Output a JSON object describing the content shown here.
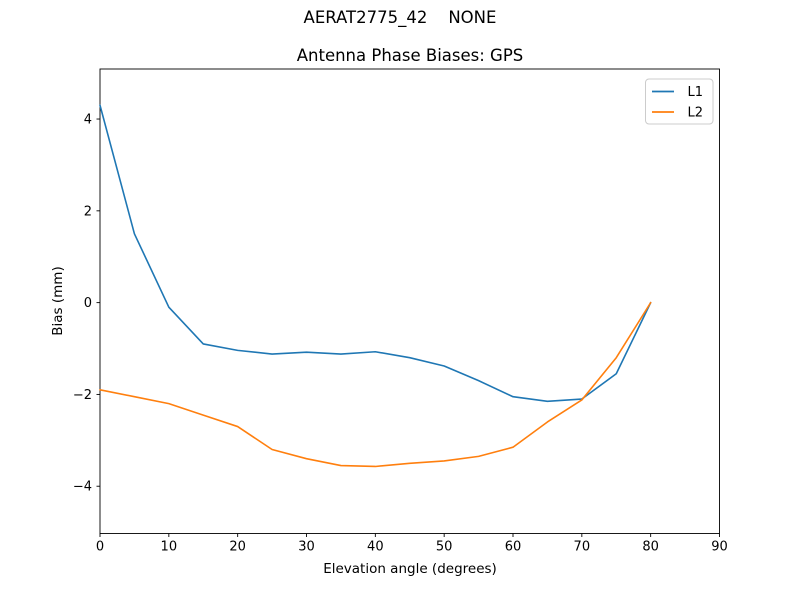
{
  "figure": {
    "suptitle": "AERAT2775_42    NONE"
  },
  "chart_data": {
    "type": "line",
    "title": "Antenna Phase Biases: GPS",
    "xlabel": "Elevation angle (degrees)",
    "ylabel": "Bias (mm)",
    "xlim": [
      0,
      90
    ],
    "ylim": [
      -5.03,
      5.09
    ],
    "x_ticks": [
      0,
      10,
      20,
      30,
      40,
      50,
      60,
      70,
      80,
      90
    ],
    "y_ticks": [
      -4,
      -2,
      0,
      2,
      4
    ],
    "grid": false,
    "legend_position": "upper right",
    "x": [
      0,
      5,
      10,
      15,
      20,
      25,
      30,
      35,
      40,
      45,
      50,
      55,
      60,
      65,
      70,
      75,
      80
    ],
    "series": [
      {
        "name": "L1",
        "color": "#1f77b4",
        "values": [
          4.3,
          1.5,
          -0.1,
          -0.9,
          -1.04,
          -1.12,
          -1.08,
          -1.12,
          -1.07,
          -1.2,
          -1.38,
          -1.7,
          -2.05,
          -2.15,
          -2.1,
          -1.55,
          0.0
        ]
      },
      {
        "name": "L2",
        "color": "#ff7f0e",
        "values": [
          -1.9,
          -2.05,
          -2.2,
          -2.45,
          -2.7,
          -3.2,
          -3.4,
          -3.55,
          -3.57,
          -3.5,
          -3.45,
          -3.35,
          -3.15,
          -2.6,
          -2.12,
          -1.2,
          0.0
        ]
      }
    ]
  }
}
